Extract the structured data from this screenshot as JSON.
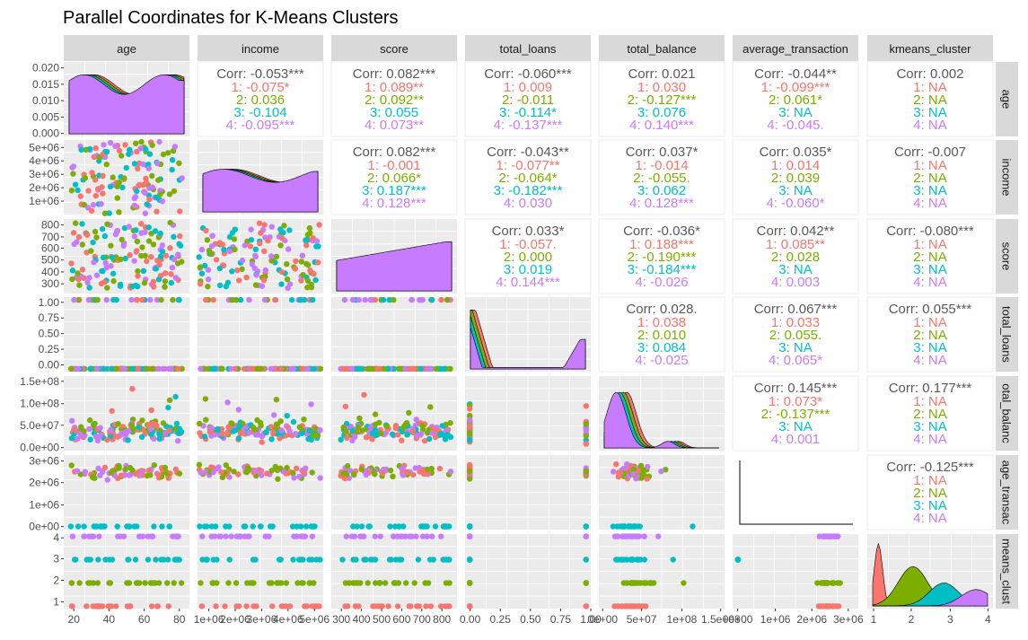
{
  "chart_data": {
    "type": "scatter",
    "title": "Parallel Coordinates for K-Means Clusters",
    "variables": [
      "age",
      "income",
      "score",
      "total_loans",
      "total_balance",
      "average_transaction",
      "kmeans_cluster"
    ],
    "row_strip_labels": [
      "age",
      "income",
      "score",
      "total_loans",
      "otal_balanc",
      "age_transac",
      "means_clust"
    ],
    "cluster_colors": [
      "#F8766D",
      "#7CAE00",
      "#00BFC4",
      "#C77CFF"
    ],
    "corr_color": "#595959",
    "x_ticks": [
      [
        "20",
        "40",
        "60",
        "80"
      ],
      [
        "1e+06",
        "2e+06",
        "3e+06",
        "4e+06",
        "5e+06"
      ],
      [
        "300",
        "400",
        "500",
        "600",
        "700",
        "800"
      ],
      [
        "0.00",
        "0.25",
        "0.50",
        "0.75",
        "1.00"
      ],
      [
        "0e+00",
        "5e+07",
        "1e+08",
        "1.5e+08"
      ],
      [
        "0e+00",
        "1e+06",
        "2e+06",
        "3e+06"
      ],
      [
        "1",
        "2",
        "3",
        "4"
      ]
    ],
    "y_ticks": [
      [
        "0.000",
        "0.005",
        "0.010",
        "0.015",
        "0.020"
      ],
      [
        "1e+06",
        "2e+06",
        "3e+06",
        "4e+06",
        "5e+06"
      ],
      [
        "300",
        "400",
        "500",
        "600",
        "700",
        "800"
      ],
      [
        "0.00",
        "0.25",
        "0.50",
        "0.75",
        "1.00"
      ],
      [
        "0.0e+00",
        "5.0e+07",
        "1.0e+08",
        "1.5e+08"
      ],
      [
        "0e+00",
        "1e+06",
        "2e+06",
        "3e+06"
      ],
      [
        "1",
        "2",
        "3",
        "4"
      ]
    ],
    "correlations": [
      {
        "row": 0,
        "col": 1,
        "overall": "Corr: -0.053***",
        "groups": [
          "1: -0.075*",
          "2: 0.036",
          "3: -0.104",
          "4: -0.095***"
        ]
      },
      {
        "row": 0,
        "col": 2,
        "overall": "Corr: 0.082***",
        "groups": [
          "1: 0.089**",
          "2: 0.092**",
          "3: 0.055",
          "4: 0.073**"
        ]
      },
      {
        "row": 0,
        "col": 3,
        "overall": "Corr: -0.060***",
        "groups": [
          "1: 0.009",
          "2: -0.011",
          "3: -0.114*",
          "4: -0.137***"
        ]
      },
      {
        "row": 0,
        "col": 4,
        "overall": "Corr: 0.021",
        "groups": [
          "1: 0.030",
          "2: -0.127***",
          "3: 0.076",
          "4: 0.140***"
        ]
      },
      {
        "row": 0,
        "col": 5,
        "overall": "Corr: -0.044**",
        "groups": [
          "1: -0.099***",
          "2: 0.061*",
          "3: NA",
          "4: -0.045."
        ]
      },
      {
        "row": 0,
        "col": 6,
        "overall": "Corr: 0.002",
        "groups": [
          "1: NA",
          "2: NA",
          "3: NA",
          "4: NA"
        ]
      },
      {
        "row": 1,
        "col": 2,
        "overall": "Corr: 0.082***",
        "groups": [
          "1: -0.001",
          "2: 0.066*",
          "3: 0.187***",
          "4: 0.128***"
        ]
      },
      {
        "row": 1,
        "col": 3,
        "overall": "Corr: -0.043**",
        "groups": [
          "1: -0.077**",
          "2: -0.064*",
          "3: -0.182***",
          "4: 0.030"
        ]
      },
      {
        "row": 1,
        "col": 4,
        "overall": "Corr: 0.037*",
        "groups": [
          "1: -0.014",
          "2: -0.055.",
          "3: 0.062",
          "4: 0.128***"
        ]
      },
      {
        "row": 1,
        "col": 5,
        "overall": "Corr: 0.035*",
        "groups": [
          "1: 0.014",
          "2: 0.039",
          "3: NA",
          "4: -0.060*"
        ]
      },
      {
        "row": 1,
        "col": 6,
        "overall": "Corr: -0.007",
        "groups": [
          "1: NA",
          "2: NA",
          "3: NA",
          "4: NA"
        ]
      },
      {
        "row": 2,
        "col": 3,
        "overall": "Corr: 0.033*",
        "groups": [
          "1: -0.057.",
          "2: 0.000",
          "3: 0.019",
          "4: 0.144***"
        ]
      },
      {
        "row": 2,
        "col": 4,
        "overall": "Corr: -0.036*",
        "groups": [
          "1: 0.188***",
          "2: -0.190***",
          "3: -0.184***",
          "4: -0.026"
        ]
      },
      {
        "row": 2,
        "col": 5,
        "overall": "Corr: 0.042**",
        "groups": [
          "1: 0.085**",
          "2: 0.028",
          "3: NA",
          "4: 0.003"
        ]
      },
      {
        "row": 2,
        "col": 6,
        "overall": "Corr: -0.080***",
        "groups": [
          "1: NA",
          "2: NA",
          "3: NA",
          "4: NA"
        ]
      },
      {
        "row": 3,
        "col": 4,
        "overall": "Corr: 0.028.",
        "groups": [
          "1: 0.038",
          "2: 0.010",
          "3: 0.084",
          "4: -0.025"
        ]
      },
      {
        "row": 3,
        "col": 5,
        "overall": "Corr: 0.067***",
        "groups": [
          "1: 0.033",
          "2: 0.055.",
          "3: NA",
          "4: 0.065*"
        ]
      },
      {
        "row": 3,
        "col": 6,
        "overall": "Corr: 0.055***",
        "groups": [
          "1: NA",
          "2: NA",
          "3: NA",
          "4: NA"
        ]
      },
      {
        "row": 4,
        "col": 5,
        "overall": "Corr: 0.145***",
        "groups": [
          "1: 0.073*",
          "2: -0.137***",
          "3: NA",
          "4: 0.001"
        ]
      },
      {
        "row": 4,
        "col": 6,
        "overall": "Corr: 0.177***",
        "groups": [
          "1: NA",
          "2: NA",
          "3: NA",
          "4: NA"
        ]
      },
      {
        "row": 5,
        "col": 6,
        "overall": "Corr: -0.125***",
        "groups": [
          "1: NA",
          "2: NA",
          "3: NA",
          "4: NA"
        ]
      }
    ]
  }
}
